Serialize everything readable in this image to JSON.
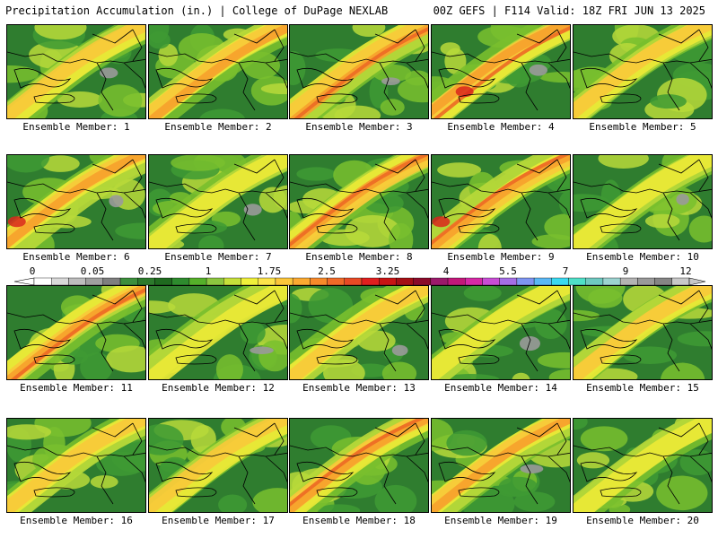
{
  "header": {
    "title": "Precipitation Accumulation (in.) | College of DuPage NEXLAB",
    "run_info": "00Z GEFS | F114 Valid: 18Z FRI JUN 13 2025"
  },
  "label_prefix": "Ensemble Member: ",
  "members": [
    {
      "label": "Ensemble Member: 1",
      "intensity": 0.45,
      "seed": 1
    },
    {
      "label": "Ensemble Member: 2",
      "intensity": 0.55,
      "seed": 2
    },
    {
      "label": "Ensemble Member: 3",
      "intensity": 0.6,
      "seed": 3
    },
    {
      "label": "Ensemble Member: 4",
      "intensity": 0.65,
      "seed": 4
    },
    {
      "label": "Ensemble Member: 5",
      "intensity": 0.45,
      "seed": 5
    },
    {
      "label": "Ensemble Member: 6",
      "intensity": 0.55,
      "seed": 6
    },
    {
      "label": "Ensemble Member: 7",
      "intensity": 0.4,
      "seed": 7
    },
    {
      "label": "Ensemble Member: 8",
      "intensity": 0.6,
      "seed": 8
    },
    {
      "label": "Ensemble Member: 9",
      "intensity": 0.6,
      "seed": 9
    },
    {
      "label": "Ensemble Member: 10",
      "intensity": 0.4,
      "seed": 10
    },
    {
      "label": "Ensemble Member: 11",
      "intensity": 0.6,
      "seed": 11
    },
    {
      "label": "Ensemble Member: 12",
      "intensity": 0.25,
      "seed": 12
    },
    {
      "label": "Ensemble Member: 13",
      "intensity": 0.45,
      "seed": 13
    },
    {
      "label": "Ensemble Member: 14",
      "intensity": 0.35,
      "seed": 14
    },
    {
      "label": "Ensemble Member: 15",
      "intensity": 0.5,
      "seed": 15
    },
    {
      "label": "Ensemble Member: 16",
      "intensity": 0.45,
      "seed": 16
    },
    {
      "label": "Ensemble Member: 17",
      "intensity": 0.45,
      "seed": 17
    },
    {
      "label": "Ensemble Member: 18",
      "intensity": 0.6,
      "seed": 18
    },
    {
      "label": "Ensemble Member: 19",
      "intensity": 0.55,
      "seed": 19
    },
    {
      "label": "Ensemble Member: 20",
      "intensity": 0.35,
      "seed": 20
    }
  ],
  "colorbar": {
    "tick_labels": [
      "0",
      "0.05",
      "0.25",
      "1",
      "1.75",
      "2.5",
      "3.25",
      "4",
      "5.5",
      "7",
      "9",
      "12"
    ],
    "colors": [
      "#ffffff",
      "#d9d9d9",
      "#bdbdbd",
      "#a0a0a0",
      "#7f7f7f",
      "#3d8f3d",
      "#2c7a2c",
      "#1f6a1f",
      "#2e8b2e",
      "#55b02a",
      "#8cc63f",
      "#c7e03a",
      "#f0f03a",
      "#fde34a",
      "#fcc63a",
      "#fba931",
      "#f78a2a",
      "#f06a28",
      "#e84a25",
      "#e01f1f",
      "#c81414",
      "#a50f15",
      "#8b0a2a",
      "#9b1a6b",
      "#c2187a",
      "#d629a6",
      "#c94dd6",
      "#a56ee6",
      "#7e95f2",
      "#5ab8f5",
      "#3ad9f0",
      "#4fe0c8",
      "#6ec9c0",
      "#9cd3d0",
      "#b3b3b3",
      "#999999",
      "#858585",
      "#c8c8c8"
    ]
  },
  "colors": {
    "dark_green": "#2f7d2f",
    "green": "#3e9a34",
    "light_green": "#79bf2e",
    "yellow_green": "#b9d93a",
    "yellow": "#ecea36",
    "gold": "#f8c93a",
    "orange": "#f6a12c",
    "red_orange": "#ec6a25",
    "red": "#d9261c",
    "gray": "#9a9a9a"
  }
}
